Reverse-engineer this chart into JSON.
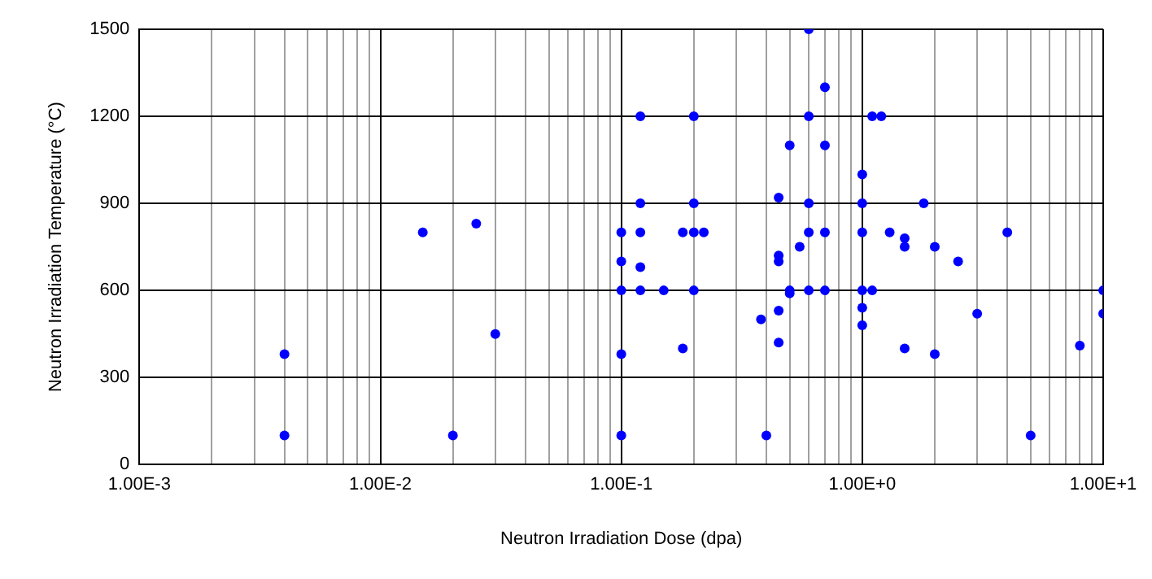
{
  "chart_data": {
    "type": "scatter",
    "xlabel": "Neutron Irradiation Dose (dpa)",
    "ylabel": "Neutron Irradiation Temperature (°C)",
    "log": "x",
    "grid": true,
    "marker": "circle",
    "legend": false,
    "xlim": [
      0.001,
      10
    ],
    "ylim": [
      0,
      1500
    ],
    "xticks": [
      {
        "value": 0.001,
        "label": "1.00E-3"
      },
      {
        "value": 0.002,
        "label": null
      },
      {
        "value": 0.003,
        "label": null
      },
      {
        "value": 0.004,
        "label": null
      },
      {
        "value": 0.005,
        "label": null
      },
      {
        "value": 0.006,
        "label": null
      },
      {
        "value": 0.007,
        "label": null
      },
      {
        "value": 0.008,
        "label": null
      },
      {
        "value": 0.009,
        "label": null
      },
      {
        "value": 0.01,
        "label": "1.00E-2"
      },
      {
        "value": 0.02,
        "label": null
      },
      {
        "value": 0.03,
        "label": null
      },
      {
        "value": 0.04,
        "label": null
      },
      {
        "value": 0.05,
        "label": null
      },
      {
        "value": 0.06,
        "label": null
      },
      {
        "value": 0.07,
        "label": null
      },
      {
        "value": 0.08,
        "label": null
      },
      {
        "value": 0.09,
        "label": null
      },
      {
        "value": 0.1,
        "label": "1.00E-1"
      },
      {
        "value": 0.2,
        "label": null
      },
      {
        "value": 0.3,
        "label": null
      },
      {
        "value": 0.4,
        "label": null
      },
      {
        "value": 0.5,
        "label": null
      },
      {
        "value": 0.6,
        "label": null
      },
      {
        "value": 0.7,
        "label": null
      },
      {
        "value": 0.8,
        "label": null
      },
      {
        "value": 0.9,
        "label": null
      },
      {
        "value": 1,
        "label": "1.00E+0"
      },
      {
        "value": 2,
        "label": null
      },
      {
        "value": 3,
        "label": null
      },
      {
        "value": 4,
        "label": null
      },
      {
        "value": 5,
        "label": null
      },
      {
        "value": 6,
        "label": null
      },
      {
        "value": 7,
        "label": null
      },
      {
        "value": 8,
        "label": null
      },
      {
        "value": 9,
        "label": null
      },
      {
        "value": 10,
        "label": "1.00E+1"
      }
    ],
    "yticks": [
      0,
      300,
      600,
      900,
      1200,
      1500
    ],
    "series": [
      {
        "color": "#0000ff",
        "x": [
          0.004,
          0.004,
          0.015,
          0.025,
          0.03,
          0.02,
          0.1,
          0.1,
          0.1,
          0.1,
          0.1,
          0.12,
          0.2,
          0.6,
          0.7,
          0.6,
          1.1,
          1.2,
          0.5,
          0.7,
          1.0,
          0.45,
          0.12,
          0.2,
          0.6,
          1.0,
          0.12,
          0.18,
          0.2,
          0.22,
          0.6,
          0.7,
          1.0,
          0.12,
          0.45,
          0.45,
          0.55,
          0.12,
          0.15,
          0.2,
          0.5,
          0.5,
          0.6,
          0.7,
          1.0,
          1.1,
          1.0,
          1.0,
          0.45,
          0.38,
          0.45,
          0.18,
          0.4,
          1.8,
          1.3,
          1.5,
          1.5,
          2.0,
          2.5,
          4.0,
          3.0,
          1.5,
          2.0,
          8.0,
          5.0,
          10,
          10
        ],
        "values": [
          380,
          100,
          800,
          830,
          450,
          100,
          800,
          700,
          600,
          380,
          100,
          1200,
          1200,
          1500,
          1300,
          1200,
          1200,
          1200,
          1100,
          1100,
          1000,
          920,
          900,
          900,
          900,
          900,
          800,
          800,
          800,
          800,
          800,
          800,
          800,
          680,
          720,
          700,
          750,
          600,
          600,
          600,
          600,
          590,
          600,
          600,
          600,
          600,
          540,
          480,
          530,
          500,
          420,
          400,
          100,
          900,
          800,
          780,
          750,
          750,
          700,
          800,
          520,
          400,
          380,
          410,
          100,
          600,
          520
        ]
      }
    ]
  }
}
